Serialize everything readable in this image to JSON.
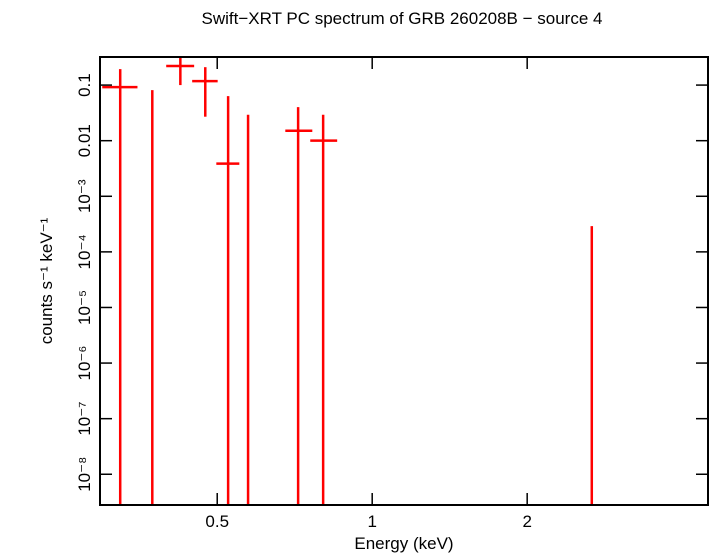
{
  "chart_data": {
    "type": "scatter",
    "title": "Swift−XRT PC spectrum of GRB 260208B − source 4",
    "x_label": "Energy (keV)",
    "y_label": "counts s⁻¹ keV⁻¹",
    "log_x": true,
    "log_y": true,
    "xlim": [
      0.296,
      4.49
    ],
    "ylim": [
      2.8e-09,
      0.32
    ],
    "xticks": [
      0.5,
      1,
      2
    ],
    "yticks": [
      0.1,
      0.01,
      {
        "value": 0.001,
        "label": "10⁻³"
      },
      {
        "value": 0.0001,
        "label": "10⁻⁴"
      },
      {
        "value": 1e-05,
        "label": "10⁻⁵"
      },
      {
        "value": 1e-06,
        "label": "10⁻⁶"
      },
      {
        "value": 1e-07,
        "label": "10⁻⁷"
      },
      {
        "value": 1e-08,
        "label": "10⁻⁸"
      }
    ],
    "series": [
      {
        "color": "#ff0000",
        "x": [
          0.324,
          0.374,
          0.424,
          0.474,
          0.525,
          0.574,
          0.718,
          0.803,
          2.67
        ],
        "x_low": [
          0.299,
          null,
          0.398,
          0.447,
          0.498,
          null,
          0.678,
          0.758,
          null
        ],
        "x_high": [
          0.35,
          null,
          0.451,
          0.501,
          0.552,
          null,
          0.765,
          0.855,
          null
        ],
        "values": [
          0.092,
          null,
          0.22,
          0.118,
          0.00386,
          null,
          0.0151,
          0.01,
          null
        ],
        "y_high": [
          0.194,
          0.081,
          0.32,
          0.21,
          0.0634,
          0.0293,
          0.0402,
          0.0293,
          0.00029
        ],
        "y_low": [
          null,
          null,
          0.1,
          0.027,
          null,
          null,
          null,
          null,
          null
        ]
      }
    ]
  }
}
